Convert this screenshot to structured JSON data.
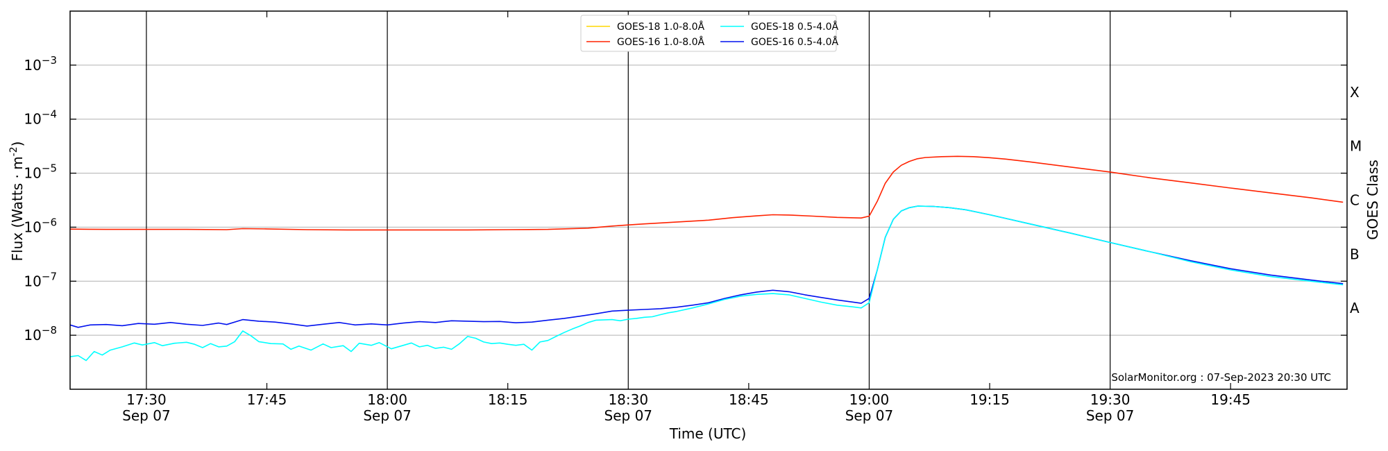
{
  "chart_data": {
    "type": "line",
    "xlabel": "Time (UTC)",
    "ylabel": "Flux (Watts · m",
    "ylabel_sup": "-2",
    "ylabel_close": ")",
    "y2label": "GOES Class",
    "yscale": "log",
    "x_unit": "minutes after 17:00 UTC on 07-Sep-2023",
    "xlim": [
      20.5,
      179.5
    ],
    "ylim_exp": [
      -9.0,
      -2.0
    ],
    "grid": "horizontal at decades",
    "legend_position": "top-center",
    "credit": "SolarMonitor.org : 07-Sep-2023 20:30 UTC",
    "x_ticks": [
      {
        "x": 30,
        "time": "17:30",
        "date": "Sep 07",
        "major": true
      },
      {
        "x": 45,
        "time": "17:45",
        "date": "",
        "major": false
      },
      {
        "x": 60,
        "time": "18:00",
        "date": "Sep 07",
        "major": true
      },
      {
        "x": 75,
        "time": "18:15",
        "date": "",
        "major": false
      },
      {
        "x": 90,
        "time": "18:30",
        "date": "Sep 07",
        "major": true
      },
      {
        "x": 105,
        "time": "18:45",
        "date": "",
        "major": false
      },
      {
        "x": 120,
        "time": "19:00",
        "date": "Sep 07",
        "major": true
      },
      {
        "x": 135,
        "time": "19:15",
        "date": "",
        "major": false
      },
      {
        "x": 150,
        "time": "19:30",
        "date": "Sep 07",
        "major": true
      },
      {
        "x": 165,
        "time": "19:45",
        "date": "",
        "major": false
      }
    ],
    "y_ticks": [
      {
        "exp": -8,
        "base": "10",
        "sup": "−8"
      },
      {
        "exp": -7,
        "base": "10",
        "sup": "−7"
      },
      {
        "exp": -6,
        "base": "10",
        "sup": "−6"
      },
      {
        "exp": -5,
        "base": "10",
        "sup": "−5"
      },
      {
        "exp": -4,
        "base": "10",
        "sup": "−4"
      },
      {
        "exp": -3,
        "base": "10",
        "sup": "−3"
      }
    ],
    "goes_classes": [
      {
        "label": "A",
        "exp": -7.5
      },
      {
        "label": "B",
        "exp": -6.5
      },
      {
        "label": "C",
        "exp": -5.5
      },
      {
        "label": "M",
        "exp": -4.5
      },
      {
        "label": "X",
        "exp": -3.5
      }
    ],
    "legend": [
      {
        "name": "GOES-18 1.0-8.0Å",
        "color": "#ffd700"
      },
      {
        "name": "GOES-18 0.5-4.0Å",
        "color": "#00ffff"
      },
      {
        "name": "GOES-16 1.0-8.0Å",
        "color": "#ff2200"
      },
      {
        "name": "GOES-16 0.5-4.0Å",
        "color": "#0011ee"
      }
    ],
    "series": [
      {
        "name": "GOES-16 1.0-8.0Å",
        "color": "#ff2200",
        "points": [
          [
            20.5,
            9.2e-07
          ],
          [
            25,
            9.1e-07
          ],
          [
            30,
            9.1e-07
          ],
          [
            35,
            9.1e-07
          ],
          [
            40,
            9e-07
          ],
          [
            42,
            9.4e-07
          ],
          [
            45,
            9.3e-07
          ],
          [
            50,
            9e-07
          ],
          [
            55,
            8.9e-07
          ],
          [
            60,
            8.9e-07
          ],
          [
            65,
            8.9e-07
          ],
          [
            70,
            8.9e-07
          ],
          [
            75,
            9e-07
          ],
          [
            80,
            9.1e-07
          ],
          [
            85,
            9.6e-07
          ],
          [
            88,
            1.05e-06
          ],
          [
            90,
            1.1e-06
          ],
          [
            92,
            1.15e-06
          ],
          [
            95,
            1.22e-06
          ],
          [
            100,
            1.35e-06
          ],
          [
            103,
            1.5e-06
          ],
          [
            106,
            1.62e-06
          ],
          [
            108,
            1.7e-06
          ],
          [
            110,
            1.68e-06
          ],
          [
            113,
            1.6e-06
          ],
          [
            116,
            1.52e-06
          ],
          [
            119,
            1.48e-06
          ],
          [
            120,
            1.6e-06
          ],
          [
            121,
            3e-06
          ],
          [
            122,
            6.5e-06
          ],
          [
            123,
            1.05e-05
          ],
          [
            124,
            1.4e-05
          ],
          [
            125,
            1.65e-05
          ],
          [
            126,
            1.85e-05
          ],
          [
            127,
            1.95e-05
          ],
          [
            129,
            2.02e-05
          ],
          [
            131,
            2.05e-05
          ],
          [
            133,
            2.02e-05
          ],
          [
            135,
            1.93e-05
          ],
          [
            137,
            1.82e-05
          ],
          [
            140,
            1.62e-05
          ],
          [
            145,
            1.3e-05
          ],
          [
            150,
            1.05e-05
          ],
          [
            155,
            8.2e-06
          ],
          [
            160,
            6.6e-06
          ],
          [
            165,
            5.3e-06
          ],
          [
            170,
            4.3e-06
          ],
          [
            175,
            3.5e-06
          ],
          [
            179,
            2.9e-06
          ]
        ]
      },
      {
        "name": "GOES-16 0.5-4.0Å",
        "color": "#0011ee",
        "points": [
          [
            20.5,
            1.55e-08
          ],
          [
            21.5,
            1.4e-08
          ],
          [
            23,
            1.55e-08
          ],
          [
            25,
            1.58e-08
          ],
          [
            27,
            1.5e-08
          ],
          [
            29,
            1.65e-08
          ],
          [
            31,
            1.6e-08
          ],
          [
            33,
            1.72e-08
          ],
          [
            35,
            1.6e-08
          ],
          [
            37,
            1.52e-08
          ],
          [
            39,
            1.68e-08
          ],
          [
            40,
            1.58e-08
          ],
          [
            42,
            1.95e-08
          ],
          [
            44,
            1.82e-08
          ],
          [
            46,
            1.75e-08
          ],
          [
            48,
            1.62e-08
          ],
          [
            50,
            1.48e-08
          ],
          [
            52,
            1.6e-08
          ],
          [
            54,
            1.72e-08
          ],
          [
            56,
            1.55e-08
          ],
          [
            58,
            1.62e-08
          ],
          [
            60,
            1.55e-08
          ],
          [
            62,
            1.68e-08
          ],
          [
            64,
            1.78e-08
          ],
          [
            66,
            1.72e-08
          ],
          [
            68,
            1.85e-08
          ],
          [
            70,
            1.82e-08
          ],
          [
            72,
            1.78e-08
          ],
          [
            74,
            1.8e-08
          ],
          [
            76,
            1.7e-08
          ],
          [
            78,
            1.75e-08
          ],
          [
            80,
            1.9e-08
          ],
          [
            82,
            2.05e-08
          ],
          [
            84,
            2.25e-08
          ],
          [
            86,
            2.5e-08
          ],
          [
            88,
            2.8e-08
          ],
          [
            90,
            2.9e-08
          ],
          [
            92,
            3e-08
          ],
          [
            94,
            3.1e-08
          ],
          [
            96,
            3.3e-08
          ],
          [
            98,
            3.6e-08
          ],
          [
            100,
            4e-08
          ],
          [
            102,
            4.8e-08
          ],
          [
            104,
            5.6e-08
          ],
          [
            106,
            6.3e-08
          ],
          [
            108,
            6.8e-08
          ],
          [
            110,
            6.4e-08
          ],
          [
            112,
            5.6e-08
          ],
          [
            114,
            5e-08
          ],
          [
            116,
            4.5e-08
          ],
          [
            118,
            4.1e-08
          ],
          [
            119,
            3.9e-08
          ],
          [
            120,
            4.8e-08
          ],
          [
            121,
            1.6e-07
          ],
          [
            122,
            6.5e-07
          ],
          [
            123,
            1.4e-06
          ],
          [
            124,
            2e-06
          ],
          [
            125,
            2.3e-06
          ],
          [
            126,
            2.45e-06
          ],
          [
            128,
            2.42e-06
          ],
          [
            130,
            2.3e-06
          ],
          [
            132,
            2.1e-06
          ],
          [
            135,
            1.7e-06
          ],
          [
            140,
            1.15e-06
          ],
          [
            145,
            7.8e-07
          ],
          [
            150,
            5.2e-07
          ],
          [
            155,
            3.5e-07
          ],
          [
            160,
            2.4e-07
          ],
          [
            165,
            1.7e-07
          ],
          [
            170,
            1.3e-07
          ],
          [
            175,
            1.05e-07
          ],
          [
            179,
            9e-08
          ]
        ]
      },
      {
        "name": "GOES-18 0.5-4.0Å",
        "color": "#00ffff",
        "points": [
          [
            20.5,
            4e-09
          ],
          [
            21.5,
            4.2e-09
          ],
          [
            22.5,
            3.4e-09
          ],
          [
            23.5,
            5e-09
          ],
          [
            24.5,
            4.3e-09
          ],
          [
            25.5,
            5.3e-09
          ],
          [
            27,
            6.1e-09
          ],
          [
            28.5,
            7.2e-09
          ],
          [
            29.5,
            6.6e-09
          ],
          [
            31,
            7.3e-09
          ],
          [
            32,
            6.4e-09
          ],
          [
            33.5,
            7.1e-09
          ],
          [
            35,
            7.4e-09
          ],
          [
            36,
            6.8e-09
          ],
          [
            37,
            5.9e-09
          ],
          [
            38,
            7e-09
          ],
          [
            39,
            6.1e-09
          ],
          [
            40,
            6.3e-09
          ],
          [
            41,
            7.6e-09
          ],
          [
            42,
            1.2e-08
          ],
          [
            43,
            9.8e-09
          ],
          [
            44,
            7.6e-09
          ],
          [
            45.5,
            7e-09
          ],
          [
            47,
            6.9e-09
          ],
          [
            48,
            5.5e-09
          ],
          [
            49,
            6.3e-09
          ],
          [
            50.5,
            5.3e-09
          ],
          [
            52,
            6.9e-09
          ],
          [
            53,
            5.9e-09
          ],
          [
            54.5,
            6.4e-09
          ],
          [
            55.5,
            5e-09
          ],
          [
            56.5,
            7.1e-09
          ],
          [
            58,
            6.5e-09
          ],
          [
            59,
            7.3e-09
          ],
          [
            60.5,
            5.6e-09
          ],
          [
            62,
            6.5e-09
          ],
          [
            63,
            7.2e-09
          ],
          [
            64,
            6.1e-09
          ],
          [
            65,
            6.5e-09
          ],
          [
            66,
            5.7e-09
          ],
          [
            67,
            6e-09
          ],
          [
            68,
            5.5e-09
          ],
          [
            69,
            7e-09
          ],
          [
            70,
            9.5e-09
          ],
          [
            71,
            8.8e-09
          ],
          [
            72,
            7.5e-09
          ],
          [
            73,
            7e-09
          ],
          [
            74,
            7.2e-09
          ],
          [
            75,
            6.8e-09
          ],
          [
            76,
            6.5e-09
          ],
          [
            77,
            6.8e-09
          ],
          [
            78,
            5.3e-09
          ],
          [
            79,
            7.5e-09
          ],
          [
            80,
            8e-09
          ],
          [
            81,
            9.5e-09
          ],
          [
            82,
            1.12e-08
          ],
          [
            83,
            1.3e-08
          ],
          [
            84,
            1.48e-08
          ],
          [
            85,
            1.72e-08
          ],
          [
            86,
            1.9e-08
          ],
          [
            88,
            1.95e-08
          ],
          [
            89,
            1.85e-08
          ],
          [
            90,
            1.98e-08
          ],
          [
            91,
            2.05e-08
          ],
          [
            92,
            2.15e-08
          ],
          [
            93,
            2.2e-08
          ],
          [
            94,
            2.4e-08
          ],
          [
            95,
            2.6e-08
          ],
          [
            96,
            2.75e-08
          ],
          [
            98,
            3.2e-08
          ],
          [
            100,
            3.8e-08
          ],
          [
            102,
            4.6e-08
          ],
          [
            104,
            5.3e-08
          ],
          [
            106,
            5.7e-08
          ],
          [
            108,
            5.9e-08
          ],
          [
            110,
            5.6e-08
          ],
          [
            112,
            4.8e-08
          ],
          [
            114,
            4.1e-08
          ],
          [
            116,
            3.6e-08
          ],
          [
            118,
            3.35e-08
          ],
          [
            119,
            3.2e-08
          ],
          [
            120,
            4e-08
          ],
          [
            121,
            1.6e-07
          ],
          [
            122,
            6.5e-07
          ],
          [
            123,
            1.4e-06
          ],
          [
            124,
            2e-06
          ],
          [
            125,
            2.3e-06
          ],
          [
            126,
            2.45e-06
          ],
          [
            128,
            2.42e-06
          ],
          [
            130,
            2.3e-06
          ],
          [
            132,
            2.1e-06
          ],
          [
            135,
            1.7e-06
          ],
          [
            140,
            1.15e-06
          ],
          [
            145,
            7.8e-07
          ],
          [
            150,
            5.2e-07
          ],
          [
            155,
            3.5e-07
          ],
          [
            160,
            2.3e-07
          ],
          [
            165,
            1.62e-07
          ],
          [
            170,
            1.22e-07
          ],
          [
            175,
            1e-07
          ],
          [
            179,
            8.6e-08
          ]
        ]
      }
    ]
  }
}
